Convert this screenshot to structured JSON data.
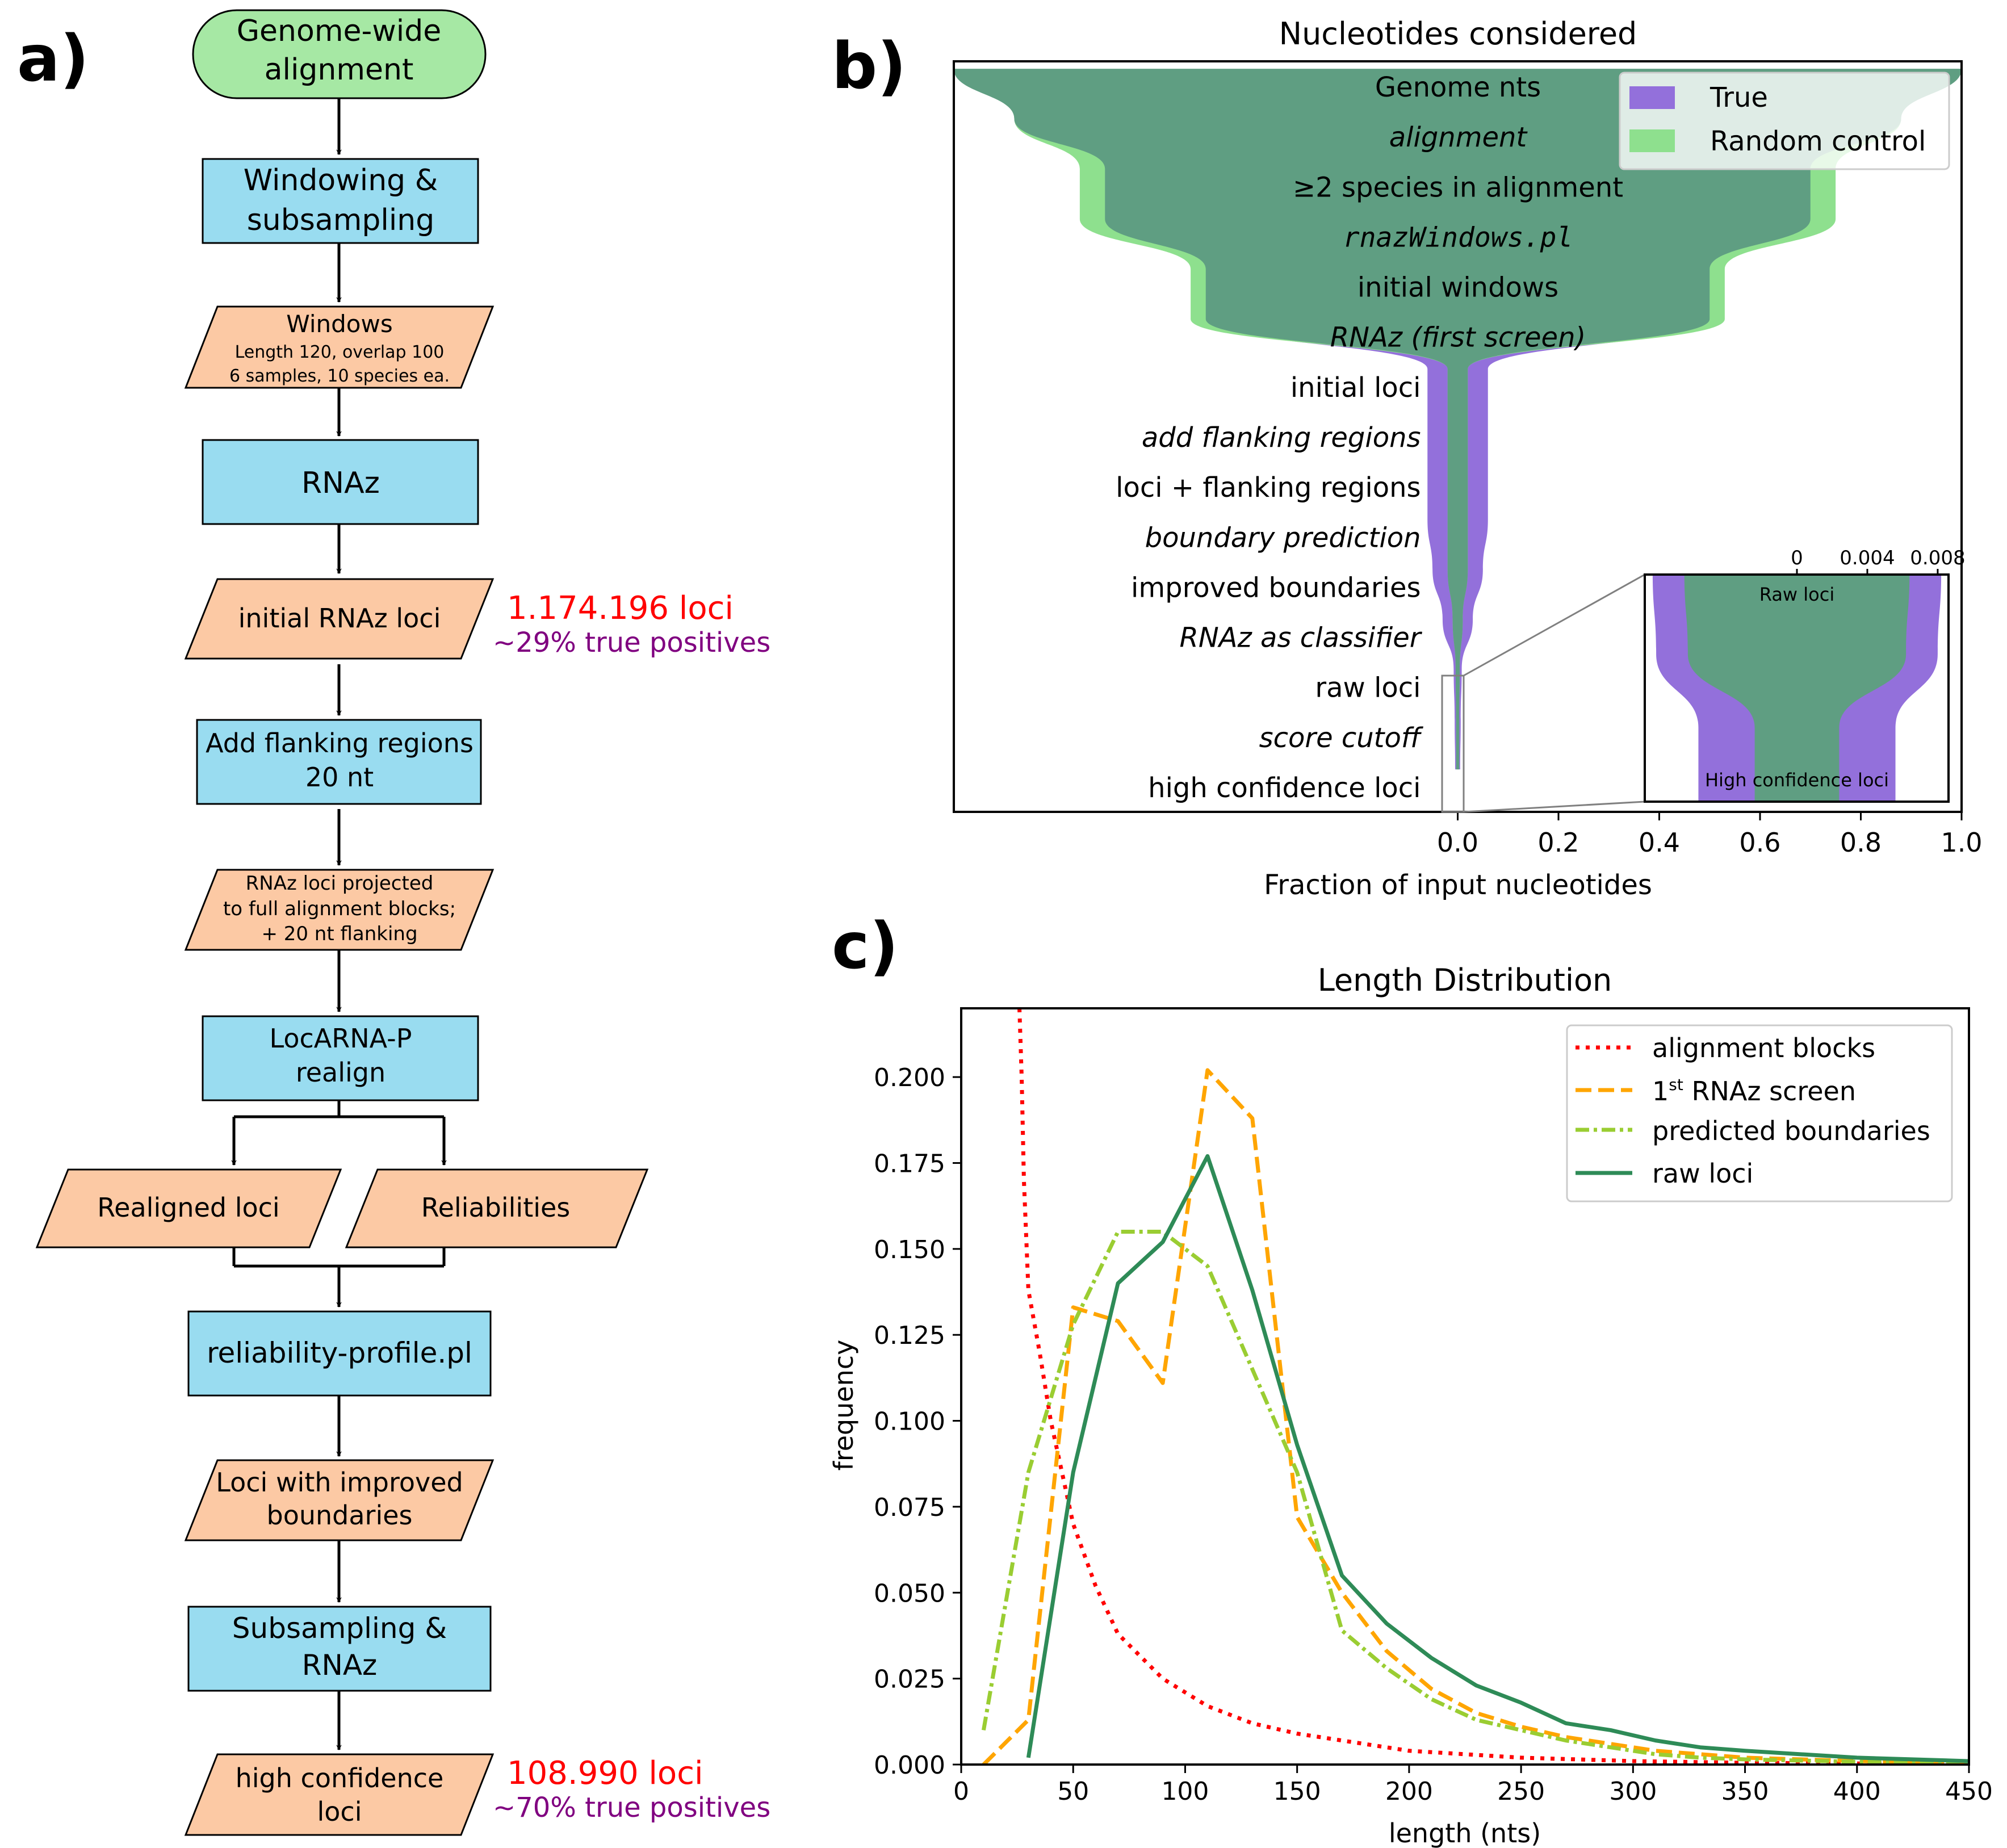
{
  "panel_labels": {
    "a": "a)",
    "b": "b)",
    "c": "c)"
  },
  "colors": {
    "start": "#a6e8a4",
    "process": "#99dcf0",
    "io": "#fcc9a4",
    "loci_red": "#ff0000",
    "tp_purple": "#800080",
    "true": "#9370db",
    "random": "#8ee08e",
    "overlap": "#5f9e82",
    "alignment_blocks": "#ff0000",
    "first_screen": "#ffa500",
    "predicted_boundaries": "#9acd32",
    "raw_loci": "#2e8b57"
  },
  "flowchart": {
    "start": [
      "Genome-wide",
      "alignment"
    ],
    "windowing": [
      "Windowing &",
      "subsampling"
    ],
    "windows": {
      "title": "Windows",
      "line1": "Length 120, overlap 100",
      "line2": "6 samples, 10 species ea."
    },
    "rnaz": "RNAz",
    "initial_loci": "initial RNAz loci",
    "initial_count": "1.174.196 loci",
    "initial_tp": "~29% true positives",
    "flanking": [
      "Add flanking regions",
      "20 nt"
    ],
    "projected": [
      "RNAz loci projected",
      "to full alignment blocks;",
      "+ 20 nt flanking"
    ],
    "locarna": [
      "LocARNA-P",
      "realign"
    ],
    "realigned": "Realigned loci",
    "reliabilities": "Reliabilities",
    "profile": "reliability-profile.pl",
    "improved": [
      "Loci with improved",
      "boundaries"
    ],
    "subsampling": [
      "Subsampling &",
      "RNAz"
    ],
    "high_conf": [
      "high confidence",
      "loci"
    ],
    "high_count": "108.990 loci",
    "high_tp": "~70% true positives"
  },
  "chart_data": [
    {
      "type": "area",
      "title": "Nucleotides considered",
      "xlabel": "Fraction of input nucleotides",
      "x_ticks": [
        "0.0",
        "0.2",
        "0.4",
        "0.6",
        "0.8",
        "1.0"
      ],
      "xlim": [
        -1.0,
        1.0
      ],
      "stages": [
        {
          "label": "Genome nts",
          "italic": false
        },
        {
          "label": "alignment",
          "italic": true
        },
        {
          "label": "≥2 species in alignment",
          "italic": false
        },
        {
          "label": "rnazWindows.pl",
          "italic": true,
          "mono": true
        },
        {
          "label": "initial windows",
          "italic": false
        },
        {
          "label": "RNAz  (first screen)",
          "italic": true
        },
        {
          "label": "initial loci",
          "italic": false
        },
        {
          "label": "add flanking regions",
          "italic": true
        },
        {
          "label": "loci + flanking regions",
          "italic": false
        },
        {
          "label": "boundary prediction",
          "italic": true
        },
        {
          "label": "improved boundaries",
          "italic": false
        },
        {
          "label": "RNAz as classifier",
          "italic": true
        },
        {
          "label": "raw loci",
          "italic": false
        },
        {
          "label": "score cutoff",
          "italic": true
        },
        {
          "label": "high confidence loci",
          "italic": false
        }
      ],
      "series": [
        {
          "name": "True",
          "values": [
            1.0,
            0.88,
            0.7,
            0.7,
            0.5,
            0.5,
            0.06,
            0.06,
            0.06,
            0.06,
            0.05,
            0.03,
            0.008,
            0.006,
            0.005
          ]
        },
        {
          "name": "Random control",
          "values": [
            1.0,
            0.88,
            0.75,
            0.75,
            0.53,
            0.53,
            0.02,
            0.02,
            0.02,
            0.02,
            0.02,
            0.01,
            0.004,
            0.003,
            0.003
          ]
        }
      ],
      "legend": "top-right",
      "inset": {
        "x_ticks": [
          "0",
          "0.004",
          "0.008"
        ],
        "top_label": "Raw loci",
        "bottom_label": "High confidence loci",
        "series": [
          {
            "name": "True",
            "values": [
              0.0082,
              0.008,
              0.0056,
              0.0056
            ]
          },
          {
            "name": "Random control",
            "values": [
              0.0064,
              0.0062,
              0.0024,
              0.0024
            ]
          }
        ]
      }
    },
    {
      "type": "line",
      "title": "Length Distribution",
      "xlabel": "length (nts)",
      "ylabel": "frequency",
      "xlim": [
        0,
        450
      ],
      "ylim": [
        0,
        0.22
      ],
      "x_ticks": [
        0,
        50,
        100,
        150,
        200,
        250,
        300,
        350,
        400,
        450
      ],
      "y_ticks": [
        "0.000",
        "0.025",
        "0.050",
        "0.075",
        "0.100",
        "0.125",
        "0.150",
        "0.175",
        "0.200"
      ],
      "legend": "top-right",
      "series": [
        {
          "name": "alignment blocks",
          "style": "dotted",
          "x": [
            26,
            27,
            28,
            30,
            35,
            40,
            50,
            60,
            70,
            90,
            110,
            130,
            150,
            170,
            200,
            250,
            300,
            350,
            400,
            450
          ],
          "y": [
            0.22,
            0.2,
            0.17,
            0.138,
            0.12,
            0.1,
            0.07,
            0.052,
            0.038,
            0.025,
            0.017,
            0.012,
            0.009,
            0.007,
            0.004,
            0.002,
            0.001,
            0.0005,
            0.0003,
            0.0002
          ]
        },
        {
          "name": "1st RNAz screen",
          "legend_main": "1",
          "legend_sup": "st",
          "legend_rest": " RNAz screen",
          "style": "dashed",
          "x": [
            10,
            30,
            50,
            70,
            90,
            110,
            130,
            150,
            170,
            190,
            210,
            230,
            250,
            270,
            290,
            310,
            330,
            350,
            400,
            450
          ],
          "y": [
            0.0,
            0.013,
            0.133,
            0.129,
            0.111,
            0.202,
            0.188,
            0.072,
            0.05,
            0.033,
            0.022,
            0.015,
            0.011,
            0.008,
            0.006,
            0.004,
            0.003,
            0.002,
            0.001,
            0.0005
          ]
        },
        {
          "name": "predicted boundaries",
          "style": "dashdot",
          "x": [
            10,
            30,
            50,
            70,
            90,
            110,
            130,
            150,
            170,
            190,
            210,
            230,
            250,
            270,
            290,
            310,
            330,
            350,
            400,
            450
          ],
          "y": [
            0.01,
            0.085,
            0.128,
            0.155,
            0.155,
            0.145,
            0.115,
            0.085,
            0.039,
            0.028,
            0.019,
            0.013,
            0.01,
            0.007,
            0.005,
            0.003,
            0.002,
            0.0015,
            0.0008,
            0.0004
          ]
        },
        {
          "name": "raw loci",
          "style": "solid",
          "x": [
            30,
            50,
            70,
            90,
            110,
            130,
            150,
            170,
            190,
            210,
            230,
            250,
            270,
            290,
            310,
            330,
            350,
            400,
            450
          ],
          "y": [
            0.002,
            0.085,
            0.14,
            0.152,
            0.177,
            0.138,
            0.093,
            0.055,
            0.041,
            0.031,
            0.023,
            0.018,
            0.012,
            0.01,
            0.007,
            0.005,
            0.004,
            0.002,
            0.001
          ]
        }
      ]
    }
  ]
}
